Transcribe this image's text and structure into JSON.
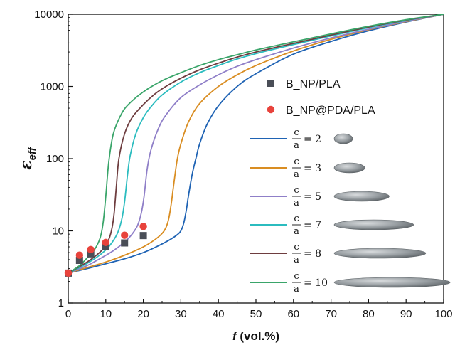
{
  "chart_data": {
    "type": "line",
    "title": "",
    "xlabel_italic": "f",
    "xlabel_rest": " (vol.%)",
    "ylabel_main": "ε",
    "ylabel_sub": "eff",
    "xlim": [
      0,
      100
    ],
    "ylim": [
      1,
      10000
    ],
    "yscale": "log",
    "x_ticks": [
      0,
      10,
      20,
      30,
      40,
      50,
      60,
      70,
      80,
      90,
      100
    ],
    "y_ticks": [
      {
        "value": 1,
        "label": "1"
      },
      {
        "value": 10,
        "label": "10"
      },
      {
        "value": 100,
        "label": "100"
      },
      {
        "value": 1000,
        "label": "1000"
      },
      {
        "value": 10000,
        "label": "10000"
      }
    ],
    "legend_position": "right",
    "scatter_series": [
      {
        "name": "B_NP/PLA",
        "marker": "square",
        "color": "#4a4e57",
        "x": [
          0,
          3,
          6,
          10,
          15,
          20
        ],
        "y": [
          2.6,
          3.9,
          4.8,
          6.0,
          6.8,
          8.6
        ]
      },
      {
        "name": "B_NP@PDA/PLA",
        "marker": "circle",
        "color": "#e8433c",
        "x": [
          0,
          3,
          6,
          10,
          15,
          20
        ],
        "y": [
          2.6,
          4.6,
          5.5,
          6.9,
          8.7,
          11.5
        ]
      }
    ],
    "line_series": [
      {
        "frac_num": "c",
        "frac_den": "a",
        "eq_text": "= 2",
        "aspect": 2,
        "color": "#1f63b4",
        "x": [
          0,
          5,
          10,
          15,
          20,
          24,
          27,
          29,
          30,
          30.8,
          31.5,
          32,
          33,
          34,
          35,
          37,
          40,
          45,
          50,
          60,
          70,
          80,
          90,
          100
        ],
        "y": [
          2.6,
          3.0,
          3.5,
          4.1,
          5.0,
          6.2,
          7.5,
          8.8,
          10,
          13,
          20,
          30,
          60,
          100,
          160,
          300,
          540,
          1000,
          1500,
          2800,
          4200,
          5900,
          7800,
          10000
        ]
      },
      {
        "frac_num": "c",
        "frac_den": "a",
        "eq_text": "= 3",
        "aspect": 3,
        "color": "#d98d22",
        "x": [
          0,
          5,
          10,
          15,
          20,
          23,
          25,
          26,
          26.8,
          27.5,
          28,
          29,
          30,
          32,
          35,
          40,
          45,
          50,
          60,
          70,
          80,
          90,
          100
        ],
        "y": [
          2.6,
          3.1,
          3.7,
          4.6,
          6.0,
          7.5,
          9.2,
          11,
          15,
          25,
          40,
          95,
          160,
          320,
          580,
          1000,
          1450,
          1950,
          3100,
          4500,
          6100,
          7900,
          10000
        ]
      },
      {
        "frac_num": "c",
        "frac_den": "a",
        "eq_text": "= 5",
        "aspect": 5,
        "color": "#8f7fc8",
        "x": [
          0,
          5,
          8,
          12,
          15,
          17,
          18.5,
          19.5,
          20.2,
          21,
          22,
          24,
          26,
          30,
          35,
          40,
          45,
          50,
          60,
          70,
          80,
          90,
          100
        ],
        "y": [
          2.6,
          3.3,
          4.0,
          5.3,
          7.0,
          9.0,
          12,
          18,
          30,
          70,
          130,
          260,
          400,
          700,
          1050,
          1450,
          1900,
          2350,
          3400,
          4700,
          6200,
          8000,
          10000
        ]
      },
      {
        "frac_num": "c",
        "frac_den": "a",
        "eq_text": "= 7",
        "aspect": 7,
        "color": "#2bbcbf",
        "x": [
          0,
          3,
          6,
          9,
          11,
          13,
          14.2,
          15,
          15.8,
          16.5,
          18,
          20,
          22,
          25,
          30,
          35,
          40,
          45,
          50,
          60,
          70,
          80,
          90,
          100
        ],
        "y": [
          2.6,
          3.1,
          3.8,
          4.9,
          6.2,
          9.0,
          14,
          25,
          60,
          110,
          220,
          370,
          520,
          760,
          1150,
          1550,
          1950,
          2400,
          2850,
          3800,
          5000,
          6500,
          8200,
          10000
        ]
      },
      {
        "frac_num": "c",
        "frac_den": "a",
        "eq_text": "= 8",
        "aspect": 8,
        "color": "#6e3d3f",
        "x": [
          0,
          3,
          6,
          9,
          10.5,
          11.5,
          12.2,
          12.8,
          13.5,
          15,
          17,
          20,
          23,
          26,
          30,
          35,
          40,
          45,
          50,
          60,
          70,
          80,
          90,
          100
        ],
        "y": [
          2.6,
          3.2,
          4.0,
          5.4,
          7.0,
          10,
          17,
          40,
          100,
          220,
          370,
          560,
          780,
          1000,
          1300,
          1700,
          2100,
          2550,
          3000,
          3950,
          5150,
          6650,
          8300,
          10000
        ]
      },
      {
        "frac_num": "c",
        "frac_den": "a",
        "eq_text": "= 10",
        "aspect": 10,
        "color": "#3aa56a",
        "x": [
          0,
          3,
          5,
          7,
          8.5,
          9.3,
          10,
          10.8,
          12,
          14,
          16,
          20,
          25,
          30,
          35,
          40,
          45,
          50,
          60,
          70,
          80,
          90,
          100
        ],
        "y": [
          2.6,
          3.3,
          4.2,
          5.5,
          8.0,
          13,
          30,
          90,
          220,
          400,
          560,
          840,
          1200,
          1550,
          1950,
          2350,
          2750,
          3200,
          4150,
          5350,
          6800,
          8400,
          10000
        ]
      }
    ]
  }
}
